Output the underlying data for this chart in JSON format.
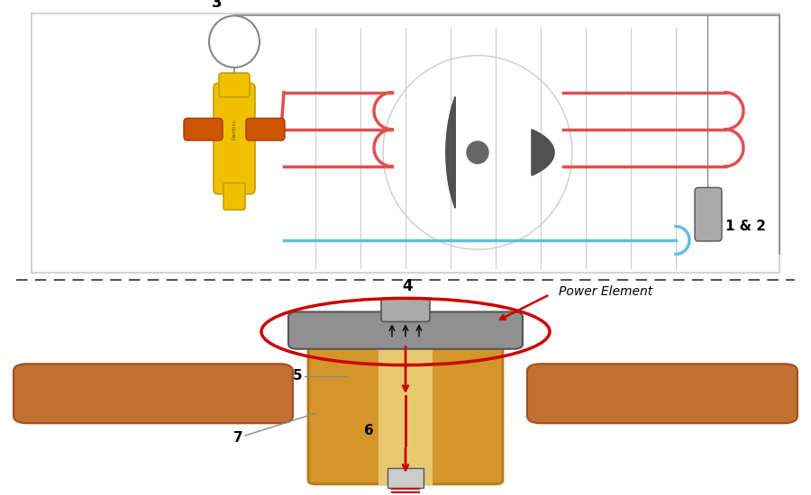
{
  "bg_color": "#ffffff",
  "top_section": {
    "label_3": "3",
    "label_12": "1 & 2",
    "condenser_color": "#e05050",
    "evap_color": "#60c0e0",
    "grid_color": "#cccccc",
    "box_color": "#cccccc",
    "valve_body_color": "#f0c000",
    "valve_handle_color": "#cc5500",
    "fan_color": "#505050",
    "cylinder_color": "#aaaaaa",
    "circle_stroke": "#888888"
  },
  "bottom_section": {
    "valve_gold": "#d4962a",
    "valve_dark": "#b87820",
    "copper_color": "#c07030",
    "copper_dark": "#a05020",
    "body_gray": "#888888",
    "power_element_label": "Power Element",
    "arrow_color": "#cc0000",
    "ellipse_color": "#cc0000",
    "label_4": "4",
    "label_5": "5",
    "label_6": "6",
    "label_7": "7",
    "needle_color": "#cc0000",
    "diaphragm_color": "#909090"
  },
  "dash_line_color": "#555555",
  "font_size_label": 11,
  "font_size_small": 9
}
